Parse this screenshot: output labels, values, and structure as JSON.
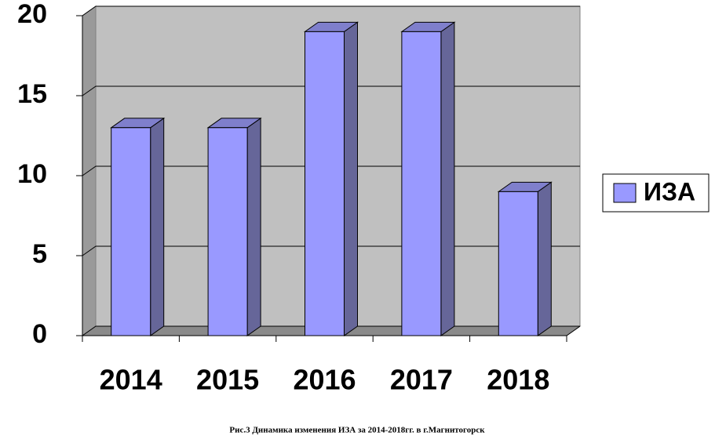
{
  "chart_data": {
    "type": "bar3d",
    "caption": "Рис.3 Динамика изменения ИЗА за 2014-2018гг. в г.Магнитогорск",
    "categories": [
      "2014",
      "2015",
      "2016",
      "2017",
      "2018"
    ],
    "series": [
      {
        "name": "ИЗА",
        "color": "#9999ff",
        "values": [
          13,
          13,
          19,
          19,
          9
        ]
      }
    ],
    "ylim": [
      0,
      20
    ],
    "yticks": [
      0,
      5,
      10,
      15,
      20
    ],
    "grid": true,
    "legend": "right"
  }
}
